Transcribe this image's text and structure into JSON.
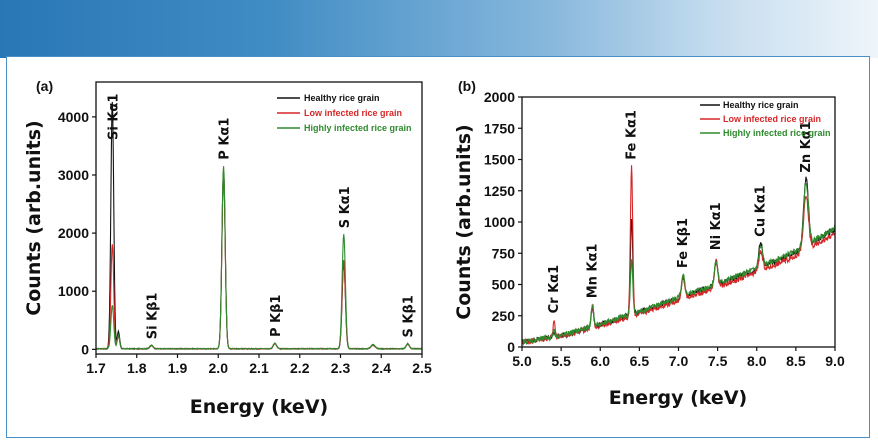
{
  "colors": {
    "healthy": "#111111",
    "low": "#d62728",
    "high": "#2e8b2e",
    "banner": "#2a77b6",
    "frame": "#4a90c6"
  },
  "chart_data": [
    {
      "panel": "(a)",
      "type": "line",
      "xlabel": "Energy (keV)",
      "ylabel": "Counts (arb.units)",
      "xlim": [
        1.7,
        2.5
      ],
      "ylim": [
        -80,
        4600
      ],
      "xticks": [
        "1.7",
        "1.8",
        "1.9",
        "2.0",
        "2.1",
        "2.2",
        "2.3",
        "2.4",
        "2.5"
      ],
      "yticks": [
        "0",
        "1000",
        "2000",
        "3000",
        "4000"
      ],
      "legend": {
        "position": "top-right",
        "entries": [
          "Healthy rice grain",
          "Low infected rice grain",
          "Highly infected rice grain"
        ]
      },
      "peaks": [
        {
          "label": "Si Kα1",
          "x": 1.74,
          "values": [
            4250,
            1800,
            750
          ],
          "width": 0.0035
        },
        {
          "label": "",
          "x": 1.755,
          "values": [
            300,
            220,
            230
          ],
          "width": 0.003
        },
        {
          "label": "Si Kβ1",
          "x": 1.836,
          "values": [
            60,
            55,
            60
          ],
          "width": 0.004
        },
        {
          "label": "P Kα1",
          "x": 2.013,
          "values": [
            3050,
            3060,
            3150
          ],
          "width": 0.004
        },
        {
          "label": "P Kβ1",
          "x": 2.139,
          "values": [
            90,
            90,
            100
          ],
          "width": 0.004
        },
        {
          "label": "S Kα1",
          "x": 2.308,
          "values": [
            1480,
            1520,
            1970
          ],
          "width": 0.004
        },
        {
          "label": "",
          "x": 2.38,
          "values": [
            70,
            60,
            70
          ],
          "width": 0.005
        },
        {
          "label": "S Kβ1",
          "x": 2.465,
          "values": [
            80,
            80,
            90
          ],
          "width": 0.004
        }
      ],
      "baseline": 10
    },
    {
      "panel": "(b)",
      "type": "line",
      "xlabel": "Energy (keV)",
      "ylabel": "Counts (arb.units)",
      "xlim": [
        5.0,
        9.0
      ],
      "ylim": [
        0,
        2000
      ],
      "xticks": [
        "5.0",
        "5.5",
        "6.0",
        "6.5",
        "7.0",
        "7.5",
        "8.0",
        "8.5",
        "9.0"
      ],
      "yticks": [
        "0",
        "250",
        "500",
        "750",
        "1000",
        "1250",
        "1500",
        "1750",
        "2000"
      ],
      "legend": {
        "position": "top-right",
        "entries": [
          "Healthy rice grain",
          "Low infected rice grain",
          "Highly infected rice grain"
        ]
      },
      "background": [
        [
          5.0,
          40
        ],
        [
          5.5,
          90
        ],
        [
          6.0,
          180
        ],
        [
          6.5,
          280
        ],
        [
          7.0,
          390
        ],
        [
          7.5,
          500
        ],
        [
          8.0,
          620
        ],
        [
          8.5,
          760
        ],
        [
          9.0,
          940
        ]
      ],
      "peaks": [
        {
          "label": "Cr Kα1",
          "x": 5.41,
          "values": [
            40,
            140,
            60
          ],
          "width": 0.012
        },
        {
          "label": "Mn Kα1",
          "x": 5.9,
          "values": [
            160,
            170,
            180
          ],
          "width": 0.015
        },
        {
          "label": "Fe Kα1",
          "x": 6.4,
          "values": [
            780,
            1190,
            430
          ],
          "width": 0.015
        },
        {
          "label": "Fe Kβ1",
          "x": 7.06,
          "values": [
            150,
            180,
            160
          ],
          "width": 0.02
        },
        {
          "label": "Ni Kα1",
          "x": 7.48,
          "values": [
            190,
            230,
            190
          ],
          "width": 0.02
        },
        {
          "label": "Cu Kα1",
          "x": 8.05,
          "values": [
            200,
            150,
            160
          ],
          "width": 0.025
        },
        {
          "label": "Zn Kα1",
          "x": 8.63,
          "values": [
            540,
            430,
            500
          ],
          "width": 0.03
        }
      ]
    }
  ]
}
